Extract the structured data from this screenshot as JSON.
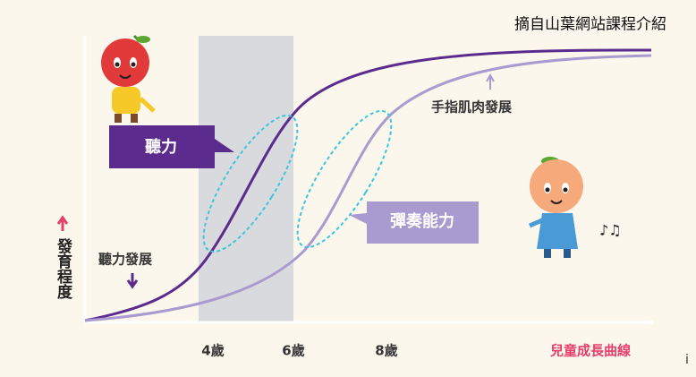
{
  "source": "摘自山葉網站課程介紹",
  "y_axis_label": "發育程度",
  "x_axis_label": "兒童成長曲線",
  "x_labels": [
    "4歲",
    "6歲",
    "8歲"
  ],
  "curves": [
    {
      "name": "聽力發展",
      "callout": "聽力"
    },
    {
      "name": "手指肌肉發展",
      "callout": "彈奏能力"
    }
  ],
  "edge_text": "i"
}
